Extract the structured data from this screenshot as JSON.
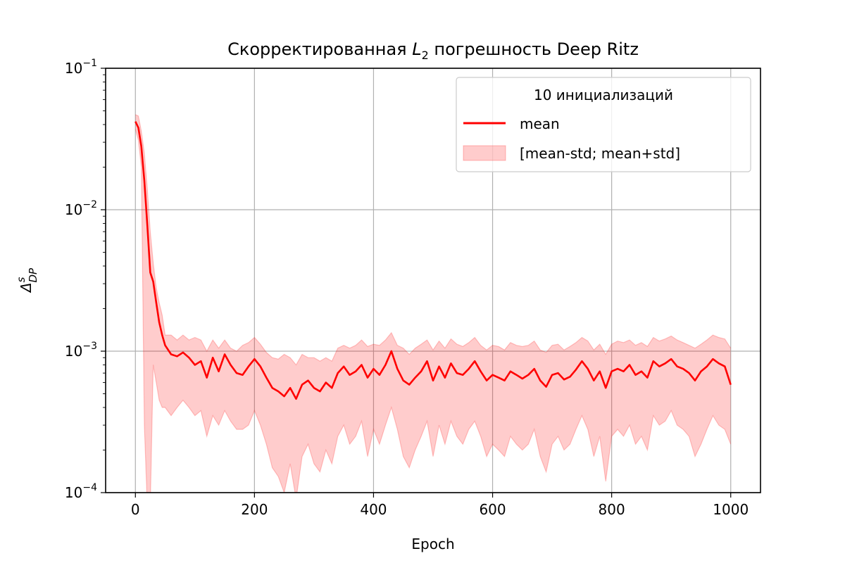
{
  "chart_data": {
    "type": "line",
    "title_main": "Скорректированная ",
    "title_symbol": "L",
    "title_subscript": "2",
    "title_tail": " погрешность Deep Ritz",
    "xlabel": "Epoch",
    "ylabel_symbol": "Δ",
    "ylabel_superscript": "s",
    "ylabel_subscript": "DP",
    "xlim": [
      -50,
      1050
    ],
    "ylim": [
      0.0001,
      0.1
    ],
    "yscale": "log",
    "grid": true,
    "x_ticks": [
      0,
      200,
      400,
      600,
      800,
      1000
    ],
    "x_tick_labels": [
      "0",
      "200",
      "400",
      "600",
      "800",
      "1000"
    ],
    "y_ticks": [
      0.1,
      0.01,
      0.001,
      0.0001
    ],
    "y_tick_bases": [
      "10",
      "10",
      "10",
      "10"
    ],
    "y_tick_exponents": [
      "−1",
      "−2",
      "−3",
      "−4"
    ],
    "legend": {
      "title": "10 инициализаций",
      "placement": "top-right",
      "entries": [
        "mean",
        "[mean-std; mean+std]"
      ]
    },
    "colors": {
      "mean": "#ff0000",
      "band": "#ff0000",
      "grid": "#b0b0b0"
    },
    "series": [
      {
        "name": "mean",
        "kind": "line",
        "x": [
          0,
          5,
          10,
          15,
          20,
          25,
          30,
          35,
          40,
          45,
          50,
          60,
          70,
          80,
          90,
          100,
          110,
          120,
          130,
          140,
          150,
          160,
          170,
          180,
          190,
          200,
          210,
          220,
          230,
          240,
          250,
          260,
          270,
          280,
          290,
          300,
          310,
          320,
          330,
          340,
          350,
          360,
          370,
          380,
          390,
          400,
          410,
          420,
          430,
          440,
          450,
          460,
          470,
          480,
          490,
          500,
          510,
          520,
          530,
          540,
          550,
          560,
          570,
          580,
          590,
          600,
          610,
          620,
          630,
          640,
          650,
          660,
          670,
          680,
          690,
          700,
          710,
          720,
          730,
          740,
          750,
          760,
          770,
          780,
          790,
          800,
          810,
          820,
          830,
          840,
          850,
          860,
          870,
          880,
          890,
          900,
          910,
          920,
          930,
          940,
          950,
          960,
          970,
          980,
          990,
          1000
        ],
        "y": [
          0.042,
          0.038,
          0.028,
          0.016,
          0.0078,
          0.0036,
          0.0031,
          0.0022,
          0.0016,
          0.0013,
          0.0011,
          0.00095,
          0.00092,
          0.00098,
          0.0009,
          0.0008,
          0.00085,
          0.00065,
          0.0009,
          0.00072,
          0.00095,
          0.0008,
          0.0007,
          0.00068,
          0.00078,
          0.00088,
          0.00078,
          0.00065,
          0.00055,
          0.00052,
          0.00048,
          0.00055,
          0.00046,
          0.00058,
          0.00062,
          0.00055,
          0.00052,
          0.0006,
          0.00055,
          0.0007,
          0.00078,
          0.00068,
          0.00072,
          0.0008,
          0.00065,
          0.00075,
          0.00068,
          0.0008,
          0.001,
          0.00075,
          0.00062,
          0.00058,
          0.00065,
          0.00072,
          0.00085,
          0.00062,
          0.00078,
          0.00065,
          0.00082,
          0.0007,
          0.00068,
          0.00075,
          0.00085,
          0.00072,
          0.00062,
          0.00068,
          0.00065,
          0.00062,
          0.00072,
          0.00068,
          0.00064,
          0.00068,
          0.00075,
          0.00062,
          0.00056,
          0.00068,
          0.0007,
          0.00063,
          0.00066,
          0.00074,
          0.00085,
          0.00075,
          0.00062,
          0.00072,
          0.00055,
          0.00072,
          0.00075,
          0.00072,
          0.0008,
          0.00068,
          0.00072,
          0.00065,
          0.00085,
          0.00078,
          0.00082,
          0.00088,
          0.00078,
          0.00075,
          0.0007,
          0.00062,
          0.00072,
          0.00078,
          0.00088,
          0.00082,
          0.00078,
          0.00058
        ]
      },
      {
        "name": "[mean-std; mean+std]",
        "kind": "band",
        "upper": [
          0.047,
          0.046,
          0.036,
          0.025,
          0.014,
          0.007,
          0.0042,
          0.0028,
          0.0022,
          0.0018,
          0.0013,
          0.0013,
          0.0012,
          0.0013,
          0.0012,
          0.00125,
          0.0012,
          0.001,
          0.0012,
          0.00105,
          0.0012,
          0.00105,
          0.001,
          0.0011,
          0.00115,
          0.00125,
          0.00112,
          0.00098,
          0.0009,
          0.00088,
          0.00095,
          0.0009,
          0.0008,
          0.00095,
          0.0009,
          0.0009,
          0.00085,
          0.0009,
          0.00085,
          0.00105,
          0.0011,
          0.00105,
          0.0011,
          0.0012,
          0.00108,
          0.00112,
          0.0011,
          0.0012,
          0.00135,
          0.0011,
          0.00105,
          0.00095,
          0.00105,
          0.00112,
          0.0012,
          0.00102,
          0.00118,
          0.00105,
          0.00122,
          0.00112,
          0.00108,
          0.00115,
          0.00125,
          0.0011,
          0.00102,
          0.0011,
          0.00108,
          0.00102,
          0.00115,
          0.0011,
          0.00108,
          0.0011,
          0.00118,
          0.00102,
          0.00098,
          0.0011,
          0.00112,
          0.00102,
          0.00108,
          0.00115,
          0.00125,
          0.00118,
          0.00102,
          0.00112,
          0.00095,
          0.00112,
          0.00118,
          0.00115,
          0.0012,
          0.0011,
          0.00115,
          0.00108,
          0.00125,
          0.00118,
          0.00122,
          0.00128,
          0.0012,
          0.00115,
          0.0011,
          0.00105,
          0.00112,
          0.0012,
          0.0013,
          0.00125,
          0.00122,
          0.00105
        ],
        "lower": [
          0.037,
          0.031,
          0.02,
          0.0003,
          8e-05,
          8e-05,
          0.0008,
          0.0006,
          0.00045,
          0.0004,
          0.0004,
          0.00035,
          0.0004,
          0.00045,
          0.0004,
          0.00035,
          0.00038,
          0.00025,
          0.00035,
          0.0003,
          0.00038,
          0.00032,
          0.00028,
          0.00028,
          0.0003,
          0.00038,
          0.0003,
          0.00022,
          0.00015,
          0.00013,
          0.0001,
          0.00016,
          9e-05,
          0.00018,
          0.00022,
          0.00016,
          0.00014,
          0.0002,
          0.00016,
          0.00025,
          0.0003,
          0.00022,
          0.00025,
          0.00032,
          0.00018,
          0.00028,
          0.00022,
          0.0003,
          0.0004,
          0.00028,
          0.00018,
          0.00015,
          0.0002,
          0.00025,
          0.00032,
          0.00018,
          0.0003,
          0.00022,
          0.00032,
          0.00025,
          0.00022,
          0.00028,
          0.00032,
          0.00025,
          0.00018,
          0.00022,
          0.0002,
          0.00018,
          0.00025,
          0.00022,
          0.0002,
          0.00022,
          0.00028,
          0.00018,
          0.00014,
          0.00022,
          0.00025,
          0.0002,
          0.00022,
          0.00028,
          0.00035,
          0.00028,
          0.00018,
          0.00025,
          0.00012,
          0.00025,
          0.00028,
          0.00025,
          0.0003,
          0.00022,
          0.00025,
          0.0002,
          0.00035,
          0.0003,
          0.00032,
          0.00038,
          0.0003,
          0.00028,
          0.00025,
          0.00018,
          0.00022,
          0.00028,
          0.00035,
          0.0003,
          0.00028,
          0.00022
        ]
      }
    ]
  }
}
